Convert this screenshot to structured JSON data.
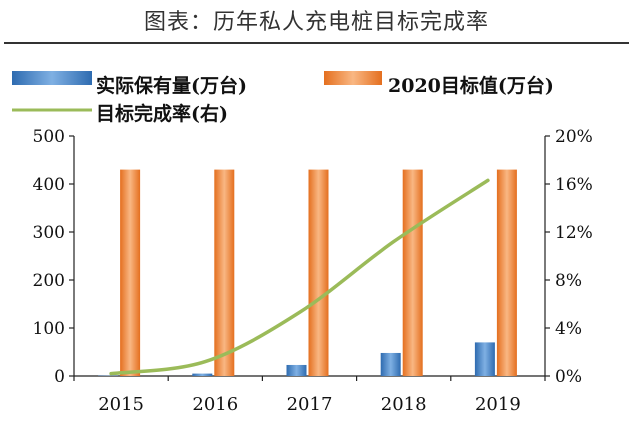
{
  "page_title": "图表：历年私人充电桩目标完成率",
  "chart_data": {
    "type": "bar",
    "categories": [
      "2015",
      "2016",
      "2017",
      "2018",
      "2019"
    ],
    "series": [
      {
        "name": "实际保有量(万台)",
        "kind": "bar",
        "axis": "left",
        "color": "#4A86C5",
        "values": [
          0.8,
          5,
          23,
          48,
          70
        ]
      },
      {
        "name": "2020目标值(万台)",
        "kind": "bar",
        "axis": "left",
        "color": "#F08A3C",
        "values": [
          430,
          430,
          430,
          430,
          430
        ]
      },
      {
        "name": "目标完成率(右)",
        "kind": "line",
        "axis": "right",
        "color": "#9BBB59",
        "values": [
          0.2,
          1.2,
          5.3,
          11.2,
          16.3
        ]
      }
    ],
    "y_left": {
      "ylim": [
        0,
        500
      ],
      "ticks": [
        "0",
        "100",
        "200",
        "300",
        "400",
        "500"
      ]
    },
    "y_right": {
      "ylim": [
        0,
        20
      ],
      "ticks": [
        "0%",
        "4%",
        "8%",
        "12%",
        "16%",
        "20%"
      ]
    },
    "grid": false,
    "legend_position": "top"
  }
}
